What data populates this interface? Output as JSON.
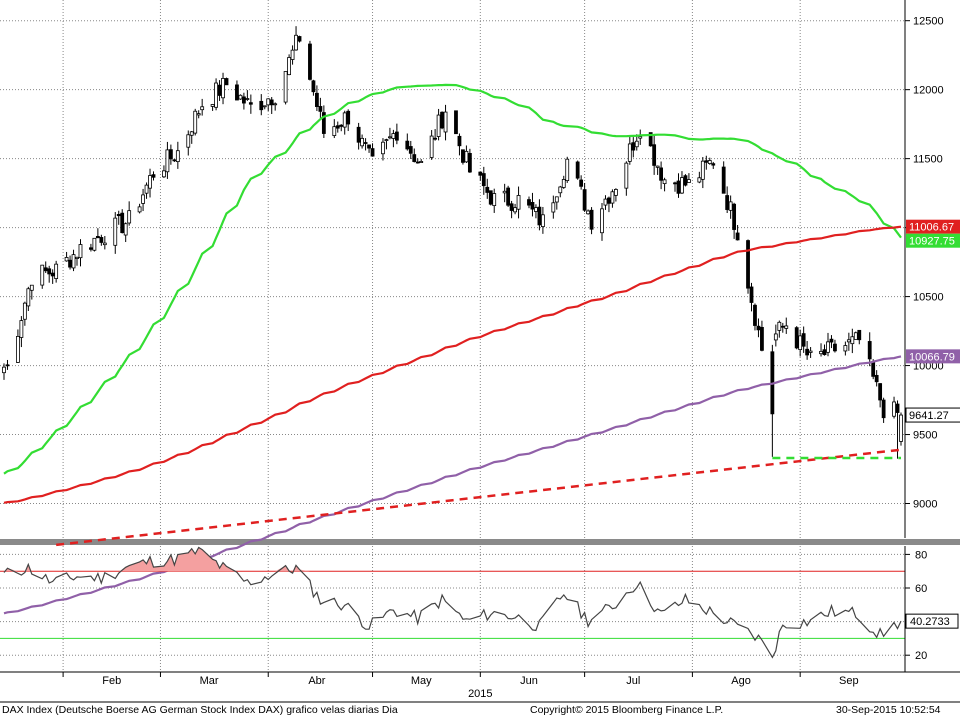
{
  "footer": {
    "description": "DAX Index (Deutsche Boerse AG German Stock Index DAX) grafico velas diarias  Dia",
    "copyright": "Copyright© 2015 Bloomberg Finance L.P.",
    "timestamp": "30-Sep-2015 10:52:54"
  },
  "chart_data": [
    {
      "type": "candlestick",
      "title": "",
      "x_axis": {
        "month_labels": [
          "Feb",
          "Mar",
          "Abr",
          "May",
          "Jun",
          "Jul",
          "Ago",
          "Sep"
        ],
        "year_label": "2015",
        "range": [
          "2015-01-15",
          "2015-09-30"
        ]
      },
      "y_axis": {
        "ticks": [
          9000,
          9500,
          10000,
          10500,
          11000,
          11500,
          12000,
          12500
        ],
        "range": [
          8750,
          12650
        ],
        "position": "right"
      },
      "grid": true,
      "series": [
        {
          "name": "DAX",
          "color_up": "#ffffff",
          "color_down": "#000000",
          "ohlc_weekly_close": [
            {
              "date": "2015-01-16",
              "close": 9990
            },
            {
              "date": "2015-01-23",
              "close": 10650
            },
            {
              "date": "2015-01-30",
              "close": 10690
            },
            {
              "date": "2015-02-06",
              "close": 10850
            },
            {
              "date": "2015-02-13",
              "close": 10960
            },
            {
              "date": "2015-02-20",
              "close": 11050
            },
            {
              "date": "2015-02-27",
              "close": 11400
            },
            {
              "date": "2015-03-06",
              "close": 11550
            },
            {
              "date": "2015-03-13",
              "close": 11900
            },
            {
              "date": "2015-03-20",
              "close": 12040
            },
            {
              "date": "2015-03-27",
              "close": 11870
            },
            {
              "date": "2015-04-03",
              "close": 11970
            },
            {
              "date": "2015-04-10",
              "close": 12380
            },
            {
              "date": "2015-04-17",
              "close": 11690
            },
            {
              "date": "2015-04-24",
              "close": 11810
            },
            {
              "date": "2015-05-01",
              "close": 11450
            },
            {
              "date": "2015-05-08",
              "close": 11710
            },
            {
              "date": "2015-05-15",
              "close": 11450
            },
            {
              "date": "2015-05-22",
              "close": 11860
            },
            {
              "date": "2015-05-29",
              "close": 11410
            },
            {
              "date": "2015-06-05",
              "close": 11200
            },
            {
              "date": "2015-06-12",
              "close": 11200
            },
            {
              "date": "2015-06-19",
              "close": 11040
            },
            {
              "date": "2015-06-26",
              "close": 11490
            },
            {
              "date": "2015-07-03",
              "close": 11060
            },
            {
              "date": "2015-07-10",
              "close": 11320
            },
            {
              "date": "2015-07-17",
              "close": 11740
            },
            {
              "date": "2015-07-24",
              "close": 11350
            },
            {
              "date": "2015-07-31",
              "close": 11310
            },
            {
              "date": "2015-08-07",
              "close": 11490
            },
            {
              "date": "2015-08-14",
              "close": 10980
            },
            {
              "date": "2015-08-21",
              "close": 10120
            },
            {
              "date": "2015-08-28",
              "close": 10300
            },
            {
              "date": "2015-09-04",
              "close": 10040
            },
            {
              "date": "2015-09-11",
              "close": 10120
            },
            {
              "date": "2015-09-18",
              "close": 10180
            },
            {
              "date": "2015-09-25",
              "close": 9690
            },
            {
              "date": "2015-09-30",
              "close": 9641
            }
          ]
        },
        {
          "name": "Moving average (green)",
          "color": "#33dd33",
          "last_value": 10927.75
        },
        {
          "name": "Moving average (red)",
          "color": "#e02020",
          "last_value": 11006.67
        },
        {
          "name": "Moving average (purple)",
          "color": "#9060a8",
          "last_value": 10066.79
        }
      ],
      "value_labels": [
        {
          "text": "11006.67",
          "value": 11006.67,
          "color": "#e02020"
        },
        {
          "text": "10927.75",
          "value": 10927.75,
          "color": "#33dd33"
        },
        {
          "text": "10066.79",
          "value": 10066.79,
          "color": "#9060a8"
        },
        {
          "text": "9641.27",
          "value": 9641.27,
          "color": "#000000"
        }
      ],
      "annotations": [
        {
          "type": "trendline",
          "style": "dashed",
          "color": "#e02020",
          "from": {
            "date": "2015-01-30",
            "value": 8700
          },
          "to": {
            "date": "2015-09-30",
            "value": 9390
          }
        },
        {
          "type": "support",
          "style": "dashed",
          "color": "#33dd33",
          "value": 9330,
          "from": "2015-08-24",
          "to": "2015-09-30"
        }
      ]
    },
    {
      "type": "line",
      "title": "",
      "y_axis": {
        "ticks": [
          20,
          40,
          60,
          80
        ],
        "range": [
          10,
          85
        ],
        "position": "right"
      },
      "grid": true,
      "reference_lines": [
        {
          "value": 70,
          "color": "#e02020"
        },
        {
          "value": 30,
          "color": "#33dd33"
        }
      ],
      "fill_above_70": "#f4a0a0",
      "series": [
        {
          "name": "RSI",
          "color": "#444444",
          "last_value": 40.2733,
          "last_label": "40.2733",
          "points": [
            {
              "date": "2015-01-15",
              "value": 68
            },
            {
              "date": "2015-01-22",
              "value": 72
            },
            {
              "date": "2015-01-29",
              "value": 63
            },
            {
              "date": "2015-02-05",
              "value": 67
            },
            {
              "date": "2015-02-12",
              "value": 66
            },
            {
              "date": "2015-02-19",
              "value": 72
            },
            {
              "date": "2015-02-26",
              "value": 76
            },
            {
              "date": "2015-03-05",
              "value": 77
            },
            {
              "date": "2015-03-12",
              "value": 82
            },
            {
              "date": "2015-03-19",
              "value": 72
            },
            {
              "date": "2015-03-26",
              "value": 63
            },
            {
              "date": "2015-04-02",
              "value": 68
            },
            {
              "date": "2015-04-09",
              "value": 72
            },
            {
              "date": "2015-04-16",
              "value": 53
            },
            {
              "date": "2015-04-23",
              "value": 50
            },
            {
              "date": "2015-04-30",
              "value": 37
            },
            {
              "date": "2015-05-07",
              "value": 47
            },
            {
              "date": "2015-05-14",
              "value": 42
            },
            {
              "date": "2015-05-21",
              "value": 53
            },
            {
              "date": "2015-05-28",
              "value": 40
            },
            {
              "date": "2015-06-04",
              "value": 45
            },
            {
              "date": "2015-06-11",
              "value": 43
            },
            {
              "date": "2015-06-18",
              "value": 37
            },
            {
              "date": "2015-06-25",
              "value": 57
            },
            {
              "date": "2015-07-02",
              "value": 41
            },
            {
              "date": "2015-07-09",
              "value": 49
            },
            {
              "date": "2015-07-16",
              "value": 63
            },
            {
              "date": "2015-07-23",
              "value": 44
            },
            {
              "date": "2015-07-30",
              "value": 53
            },
            {
              "date": "2015-08-06",
              "value": 46
            },
            {
              "date": "2015-08-13",
              "value": 38
            },
            {
              "date": "2015-08-20",
              "value": 30
            },
            {
              "date": "2015-08-24",
              "value": 20
            },
            {
              "date": "2015-08-27",
              "value": 38
            },
            {
              "date": "2015-09-03",
              "value": 40
            },
            {
              "date": "2015-09-10",
              "value": 46
            },
            {
              "date": "2015-09-17",
              "value": 45
            },
            {
              "date": "2015-09-24",
              "value": 32
            },
            {
              "date": "2015-09-30",
              "value": 40.27
            }
          ]
        }
      ]
    }
  ]
}
